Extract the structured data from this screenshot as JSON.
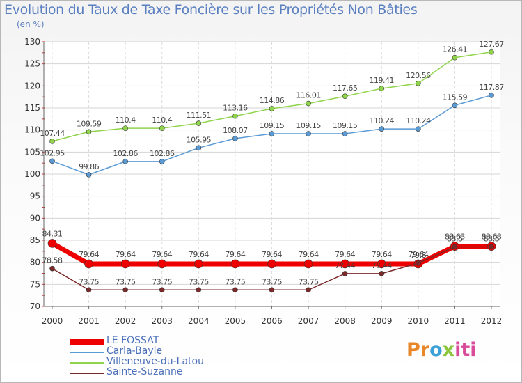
{
  "header": {
    "title": "Evolution du Taux de Taxe Foncière sur les Propriétés Non Bâties",
    "unit": "(en %)"
  },
  "logo": {
    "text": "Proxiti",
    "parts": [
      "Pr",
      "o",
      "x",
      "iti"
    ]
  },
  "chart_data": {
    "type": "line",
    "title": "Evolution du Taux de Taxe Foncière sur les Propriétés Non Bâties",
    "ylabel": "(en %)",
    "xlabel": "",
    "categories": [
      "2000",
      "2001",
      "2002",
      "2003",
      "2004",
      "2005",
      "2006",
      "2007",
      "2008",
      "2009",
      "2010",
      "2011",
      "2012"
    ],
    "ylim": [
      70,
      130
    ],
    "yticks": [
      70,
      75,
      80,
      85,
      90,
      95,
      100,
      105,
      110,
      115,
      120,
      125,
      130
    ],
    "grid": true,
    "legend_position": "bottom-left",
    "series": [
      {
        "name": "LE FOSSAT",
        "color": "#ee0000",
        "values": [
          84.31,
          79.64,
          79.64,
          79.64,
          79.64,
          79.64,
          79.64,
          79.64,
          79.64,
          79.64,
          79.64,
          83.63,
          83.63
        ],
        "labels": [
          "84.31",
          "79.64",
          "79.64",
          "79.64",
          "79.64",
          "79.64",
          "79.64",
          "79.64",
          "79.64",
          "79.64",
          "79.64",
          "83.63",
          "83.63"
        ]
      },
      {
        "name": "Carla-Bayle",
        "color": "#5b9bd5",
        "values": [
          102.95,
          99.86,
          102.86,
          102.86,
          105.95,
          108.07,
          109.15,
          109.15,
          109.15,
          110.24,
          110.24,
          115.59,
          117.87
        ],
        "labels": [
          "102.95",
          "99.86",
          "102.86",
          "102.86",
          "105.95",
          "108.07",
          "109.15",
          "109.15",
          "109.15",
          "110.24",
          "110.24",
          "115.59",
          "117.87"
        ]
      },
      {
        "name": "Villeneuve-du-Latou",
        "color": "#8fd44a",
        "values": [
          107.44,
          109.59,
          110.4,
          110.4,
          111.51,
          113.16,
          114.86,
          116.01,
          117.65,
          119.41,
          120.56,
          126.41,
          127.67
        ],
        "labels": [
          "107.44",
          "109.59",
          "110.4",
          "110.4",
          "111.51",
          "113.16",
          "114.86",
          "116.01",
          "117.65",
          "119.41",
          "120.56",
          "126.41",
          "127.67"
        ]
      },
      {
        "name": "Sainte-Suzanne",
        "color": "#7a2a2a",
        "values": [
          78.58,
          73.75,
          73.75,
          73.75,
          73.75,
          73.75,
          73.75,
          73.75,
          77.44,
          77.44,
          79.8,
          83.5,
          83.5
        ],
        "labels": [
          "78.58",
          "73.75",
          "73.75",
          "73.75",
          "73.75",
          "73.75",
          "73.75",
          "73.75",
          "77.44",
          "77.44",
          "79.8",
          "83.5",
          "83.5"
        ]
      }
    ]
  }
}
